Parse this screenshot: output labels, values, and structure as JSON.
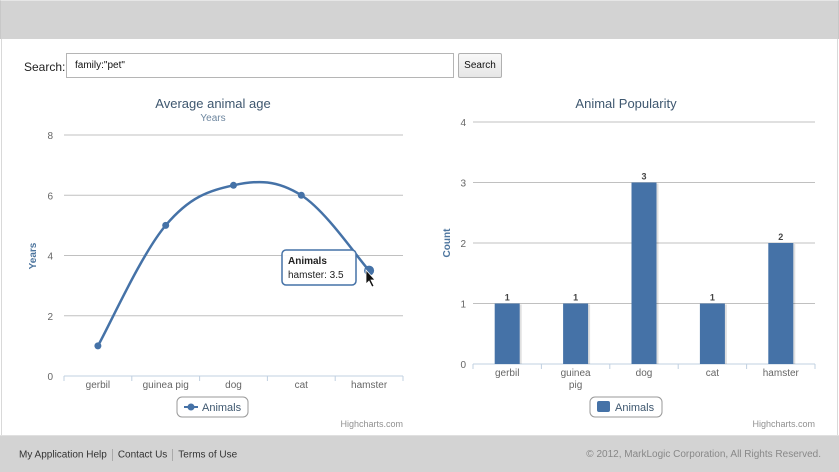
{
  "search": {
    "label": "Search:",
    "value": "family:\"pet\"",
    "placeholder": "",
    "button_label": "Search"
  },
  "footer": {
    "links": [
      "My Application Help",
      "Contact Us",
      "Terms of Use"
    ],
    "copyright": "© 2012, MarkLogic Corporation, All Rights Reserved."
  },
  "colors": {
    "series": "#4572a7",
    "title": "#3e576f",
    "subtitle": "#6d869f",
    "axis_title": "#4d759e",
    "grid": "#c0c0c0",
    "chrome": "#d3d3d3"
  },
  "chart_data": [
    {
      "type": "line",
      "title": "Average animal age",
      "subtitle": "Years",
      "xlabel": "",
      "ylabel": "Years",
      "categories": [
        "gerbil",
        "guinea pig",
        "dog",
        "cat",
        "hamster"
      ],
      "series": [
        {
          "name": "Animals",
          "values": [
            1,
            5,
            6.33,
            6,
            3.5
          ]
        }
      ],
      "yticks": [
        0,
        2,
        4,
        6,
        8
      ],
      "ylim": [
        0,
        8
      ],
      "grid": true,
      "smooth": true,
      "legend": {
        "position": "bottom-center",
        "entries": [
          "Animals"
        ]
      },
      "tooltip": {
        "series": "Animals",
        "text": "hamster: 3.5"
      },
      "credits": "Highcharts.com"
    },
    {
      "type": "bar",
      "title": "Animal Popularity",
      "xlabel": "",
      "ylabel": "Count",
      "categories": [
        "gerbil",
        "guinea pig",
        "dog",
        "cat",
        "hamster"
      ],
      "series": [
        {
          "name": "Animals",
          "values": [
            1,
            1,
            3,
            1,
            2
          ]
        }
      ],
      "data_labels": [
        "1",
        "1",
        "3",
        "1",
        "2"
      ],
      "yticks": [
        0,
        1,
        2,
        3,
        4
      ],
      "ylim": [
        0,
        4
      ],
      "grid": true,
      "legend": {
        "position": "bottom-center",
        "entries": [
          "Animals"
        ]
      },
      "credits": "Highcharts.com"
    }
  ]
}
